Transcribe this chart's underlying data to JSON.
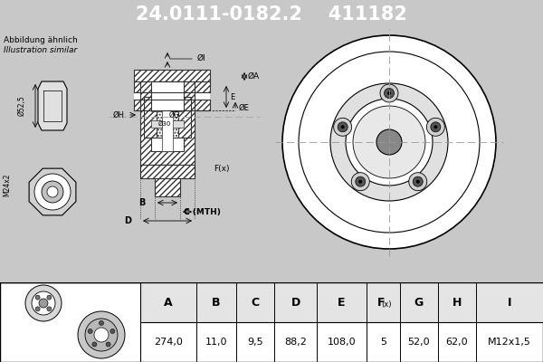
{
  "title_part_number": "24.0111-0182.2",
  "title_alt_number": "411182",
  "title_bg_color": "#2222dd",
  "title_text_color": "#ffffff",
  "subtitle_line1": "Abbildung ähnlich",
  "subtitle_line2": "Illustration similar",
  "table_headers": [
    "A",
    "B",
    "C",
    "D",
    "E",
    "F(x)",
    "G",
    "H",
    "I"
  ],
  "table_values": [
    "274,0",
    "11,0",
    "9,5",
    "88,2",
    "108,0",
    "5",
    "52,0",
    "62,0",
    "M12x1,5"
  ],
  "bg_color": "#c8c8c8",
  "diagram_bg_color": "#c8c8c8",
  "table_bg_color": "#ffffff",
  "fig_width": 6.0,
  "fig_height": 4.0,
  "hatch_color": "#555555"
}
